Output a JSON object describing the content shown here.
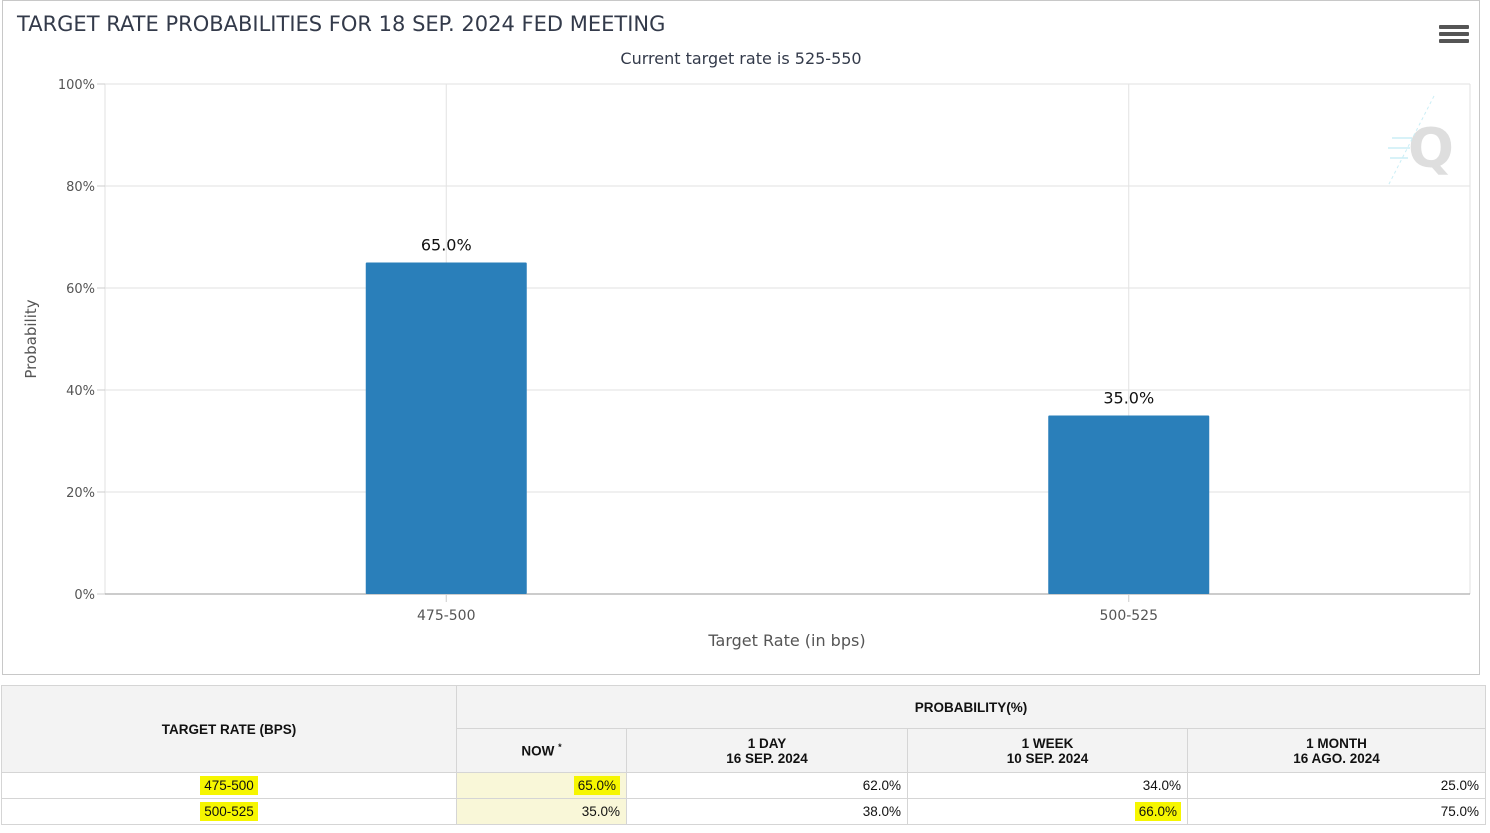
{
  "chart_data": {
    "type": "bar",
    "title": "TARGET RATE PROBABILITIES FOR 18 SEP. 2024 FED MEETING",
    "subtitle": "Current target rate is 525-550",
    "categories": [
      "475-500",
      "500-525"
    ],
    "values": [
      65.0,
      35.0
    ],
    "value_labels": [
      "65.0%",
      "35.0%"
    ],
    "xlabel": "Target Rate (in bps)",
    "ylabel": "Probability",
    "ylim": [
      0,
      100
    ],
    "y_ticks": [
      "0%",
      "20%",
      "40%",
      "60%",
      "80%",
      "100%"
    ],
    "bar_color": "#2a7fba",
    "grid": true
  },
  "table": {
    "header_rate": "TARGET RATE (BPS)",
    "header_prob": "PROBABILITY(%)",
    "cols": [
      {
        "label": "NOW",
        "sup": "*",
        "date": ""
      },
      {
        "label": "1 DAY",
        "date": "16 SEP. 2024"
      },
      {
        "label": "1 WEEK",
        "date": "10 SEP. 2024"
      },
      {
        "label": "1 MONTH",
        "date": "16 AGO. 2024"
      }
    ],
    "rows": [
      {
        "rate": "475-500",
        "values": [
          "65.0%",
          "62.0%",
          "34.0%",
          "25.0%"
        ]
      },
      {
        "rate": "500-525",
        "values": [
          "35.0%",
          "38.0%",
          "66.0%",
          "75.0%"
        ]
      }
    ],
    "highlight_color": "#f6f600",
    "now_bg": "#f9f7d8"
  }
}
